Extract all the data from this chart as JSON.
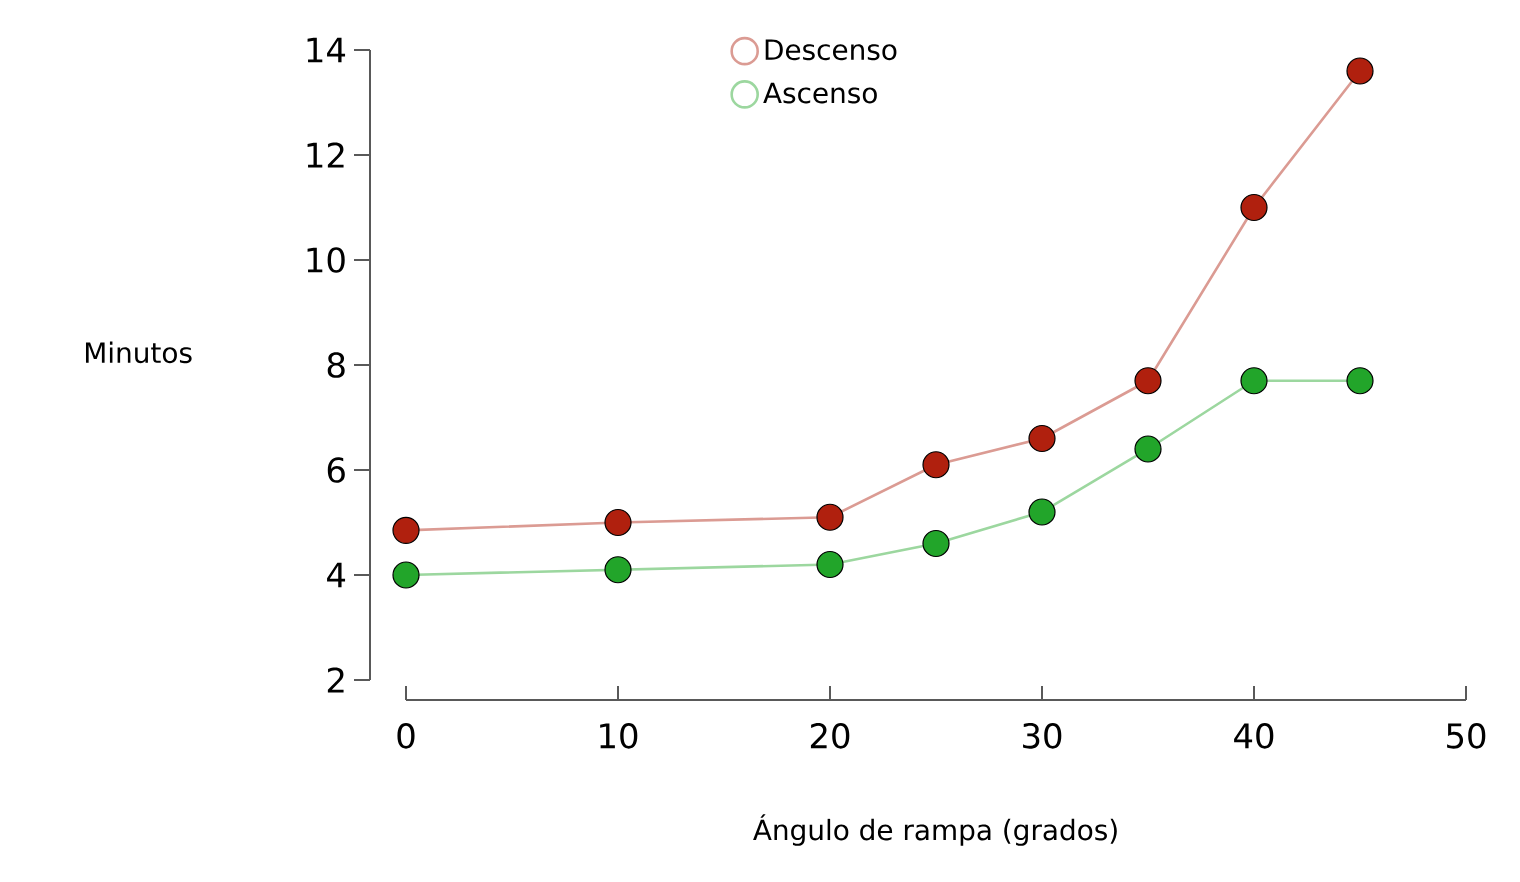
{
  "chart_data": {
    "type": "line",
    "xlabel": "Ángulo de rampa (grados)",
    "ylabel": "Minutos",
    "x": [
      0,
      10,
      20,
      25,
      30,
      35,
      40,
      45
    ],
    "series": [
      {
        "name": "Descenso",
        "color": "#b0200e",
        "values": [
          4.85,
          5.0,
          5.1,
          6.1,
          6.6,
          7.7,
          11.0,
          13.6
        ]
      },
      {
        "name": "Ascenso",
        "color": "#22a52a",
        "values": [
          4.0,
          4.1,
          4.2,
          4.6,
          5.2,
          6.4,
          7.7,
          7.7
        ]
      }
    ],
    "xlim": [
      0,
      50
    ],
    "ylim": [
      2,
      14
    ],
    "xticks": [
      0,
      10,
      20,
      30,
      40,
      50
    ],
    "yticks": [
      2,
      4,
      6,
      8,
      10,
      12,
      14
    ],
    "grid": false,
    "legend": "top",
    "marker": "circle",
    "line_style": "solid"
  }
}
